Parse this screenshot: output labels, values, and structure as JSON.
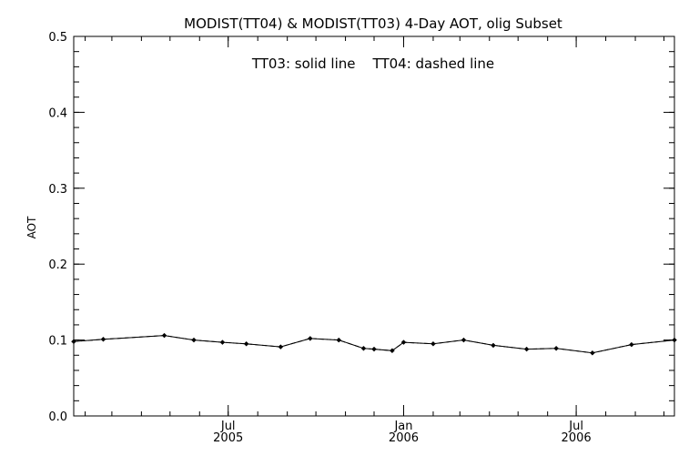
{
  "chart_data": {
    "type": "line",
    "title": "MODIST(TT04) & MODIST(TT03) 4-Day AOT, olig Subset",
    "annotation": "TT03: solid line    TT04: dashed line",
    "ylabel": "AOT",
    "xlabel": "",
    "ylim": [
      0.0,
      0.5
    ],
    "yticks": [
      {
        "value": 0.0,
        "label": "0.0"
      },
      {
        "value": 0.1,
        "label": "0.1"
      },
      {
        "value": 0.2,
        "label": "0.2"
      },
      {
        "value": 0.3,
        "label": "0.3"
      },
      {
        "value": 0.4,
        "label": "0.4"
      },
      {
        "value": 0.5,
        "label": "0.5"
      }
    ],
    "xlim": [
      "2005-01-20",
      "2006-10-12"
    ],
    "xticks": [
      {
        "date": "2005-07-01",
        "label": "Jul",
        "year": "2005"
      },
      {
        "date": "2006-01-01",
        "label": "Jan",
        "year": "2006"
      },
      {
        "date": "2006-07-01",
        "label": "Jul",
        "year": "2006"
      }
    ],
    "grid": false,
    "series": [
      {
        "name": "TT03",
        "style": "solid",
        "color": "#000000",
        "points": [
          {
            "x": "2005-01-20",
            "y": 0.098
          },
          {
            "x": "2005-02-20",
            "y": 0.101
          },
          {
            "x": "2005-04-25",
            "y": 0.106
          },
          {
            "x": "2005-05-26",
            "y": 0.1
          },
          {
            "x": "2005-06-25",
            "y": 0.097
          },
          {
            "x": "2005-07-20",
            "y": 0.095
          },
          {
            "x": "2005-08-25",
            "y": 0.091
          },
          {
            "x": "2005-09-25",
            "y": 0.102
          },
          {
            "x": "2005-10-25",
            "y": 0.1
          },
          {
            "x": "2005-11-20",
            "y": 0.089
          },
          {
            "x": "2005-12-01",
            "y": 0.088
          },
          {
            "x": "2005-12-20",
            "y": 0.086
          },
          {
            "x": "2006-01-01",
            "y": 0.097
          },
          {
            "x": "2006-02-01",
            "y": 0.095
          },
          {
            "x": "2006-03-05",
            "y": 0.1
          },
          {
            "x": "2006-04-05",
            "y": 0.093
          },
          {
            "x": "2006-05-10",
            "y": 0.088
          },
          {
            "x": "2006-06-10",
            "y": 0.089
          },
          {
            "x": "2006-07-18",
            "y": 0.083
          },
          {
            "x": "2006-08-28",
            "y": 0.094
          },
          {
            "x": "2006-10-12",
            "y": 0.1
          }
        ]
      },
      {
        "name": "TT04",
        "style": "dashed",
        "color": "#000000",
        "points": [
          {
            "x": "2005-01-20",
            "y": 0.098
          },
          {
            "x": "2005-02-20",
            "y": 0.101
          },
          {
            "x": "2005-04-25",
            "y": 0.106
          },
          {
            "x": "2005-05-26",
            "y": 0.1
          },
          {
            "x": "2005-06-25",
            "y": 0.097
          },
          {
            "x": "2005-07-20",
            "y": 0.095
          },
          {
            "x": "2005-08-25",
            "y": 0.091
          },
          {
            "x": "2005-09-25",
            "y": 0.102
          },
          {
            "x": "2005-10-25",
            "y": 0.1
          },
          {
            "x": "2005-11-20",
            "y": 0.089
          },
          {
            "x": "2005-12-01",
            "y": 0.088
          },
          {
            "x": "2005-12-20",
            "y": 0.086
          },
          {
            "x": "2006-01-01",
            "y": 0.097
          },
          {
            "x": "2006-02-01",
            "y": 0.095
          },
          {
            "x": "2006-03-05",
            "y": 0.1
          },
          {
            "x": "2006-04-05",
            "y": 0.093
          },
          {
            "x": "2006-05-10",
            "y": 0.088
          },
          {
            "x": "2006-06-10",
            "y": 0.089
          },
          {
            "x": "2006-07-18",
            "y": 0.083
          },
          {
            "x": "2006-08-28",
            "y": 0.094
          },
          {
            "x": "2006-10-12",
            "y": 0.1
          }
        ]
      }
    ]
  }
}
